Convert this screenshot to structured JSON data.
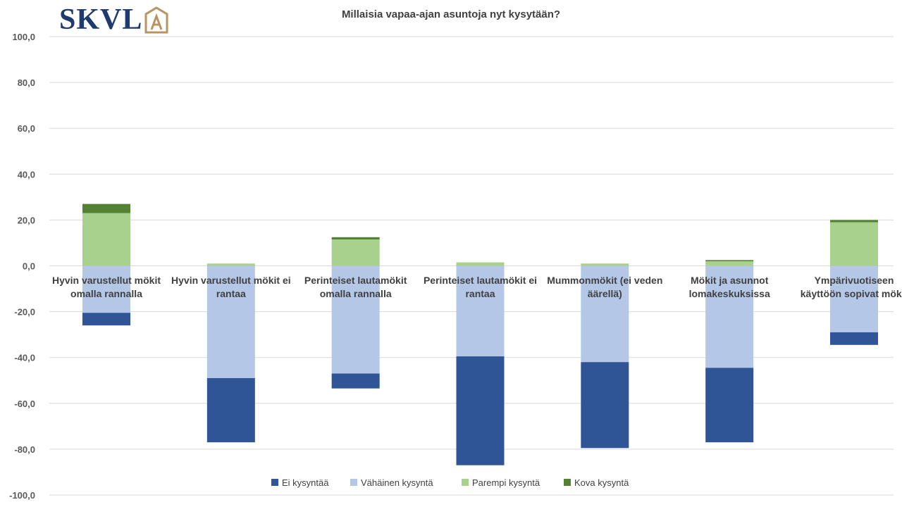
{
  "logo": {
    "text": "SKVL",
    "mark": "house-A-icon"
  },
  "chart_data": {
    "type": "bar",
    "stacked": true,
    "title": "Millaisia vapaa-ajan  asuntoja nyt kysytään?",
    "xlabel": "",
    "ylabel": "",
    "ylim": [
      -100,
      100
    ],
    "yticks": [
      "100,0",
      "80,0",
      "60,0",
      "40,0",
      "20,0",
      "0,0",
      "-20,0",
      "-40,0",
      "-60,0",
      "-80,0",
      "-100,0"
    ],
    "ytick_values": [
      100,
      80,
      60,
      40,
      20,
      0,
      -20,
      -40,
      -60,
      -80,
      -100
    ],
    "grid": true,
    "legend_position": "bottom",
    "categories": [
      [
        "Hyvin varustellut mökit",
        "omalla rannalla"
      ],
      [
        "Hyvin varustellut mökit ei",
        "rantaa"
      ],
      [
        "Perinteiset lautamökit",
        "omalla rannalla"
      ],
      [
        "Perinteiset lautamökit ei",
        "rantaa"
      ],
      [
        "Mummonmökit (ei veden",
        "äärellä)"
      ],
      [
        "Mökit ja asunnot",
        "lomakeskuksissa"
      ],
      [
        "Ympärivuotiseen",
        "käyttöön sopivat mökit"
      ]
    ],
    "series": [
      {
        "name": "Ei kysyntää",
        "color": "#2f5597",
        "values": [
          -5.5,
          -28.0,
          -6.5,
          -47.5,
          -37.5,
          -32.5,
          -5.5
        ]
      },
      {
        "name": "Vähäinen kysyntä",
        "color": "#b4c7e7",
        "values": [
          -20.5,
          -49.0,
          -47.0,
          -39.5,
          -42.0,
          -44.5,
          -29.0
        ]
      },
      {
        "name": "Parempi kysyntä",
        "color": "#a9d18e",
        "values": [
          23.0,
          1.0,
          11.5,
          1.5,
          1.0,
          2.0,
          19.0
        ]
      },
      {
        "name": "Kova kysyntä",
        "color": "#548235",
        "values": [
          4.0,
          0.0,
          1.0,
          0.0,
          0.0,
          0.5,
          1.0
        ]
      }
    ]
  }
}
